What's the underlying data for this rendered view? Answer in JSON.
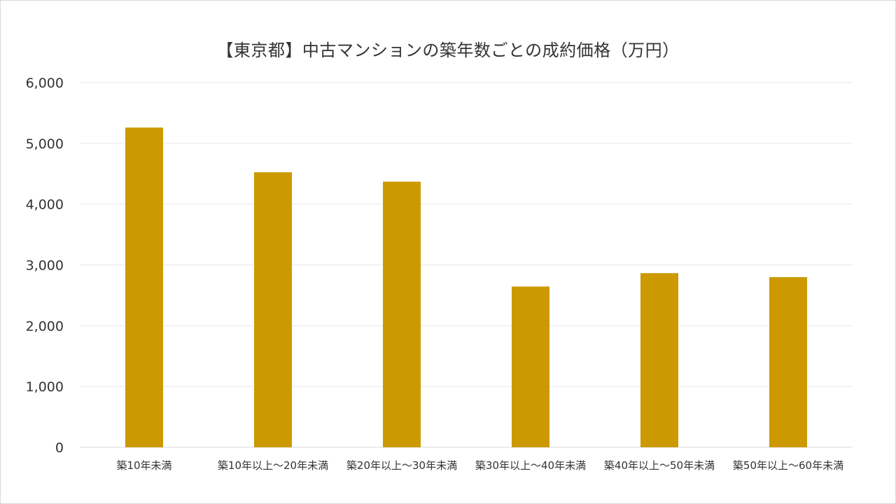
{
  "chart_data": {
    "type": "bar",
    "title": "【東京都】中古マンションの築年数ごとの成約価格（万円）",
    "xlabel": "",
    "ylabel": "",
    "categories": [
      "築10年未満",
      "築10年以上～20年未満",
      "築20年以上～30年未満",
      "築30年以上～40年未満",
      "築40年以上～50年未満",
      "築50年以上～60年未満"
    ],
    "values": [
      5260,
      4525,
      4370,
      2645,
      2865,
      2800
    ],
    "ylim": [
      0,
      6000
    ],
    "yticks": [
      0,
      1000,
      2000,
      3000,
      4000,
      5000,
      6000
    ],
    "ytick_labels": [
      "0",
      "1,000",
      "2,000",
      "3,000",
      "4,000",
      "5,000",
      "6,000"
    ],
    "grid": true,
    "legend": "none",
    "bar_color": "#CC9900",
    "grid_color": "#e6e6e6"
  }
}
